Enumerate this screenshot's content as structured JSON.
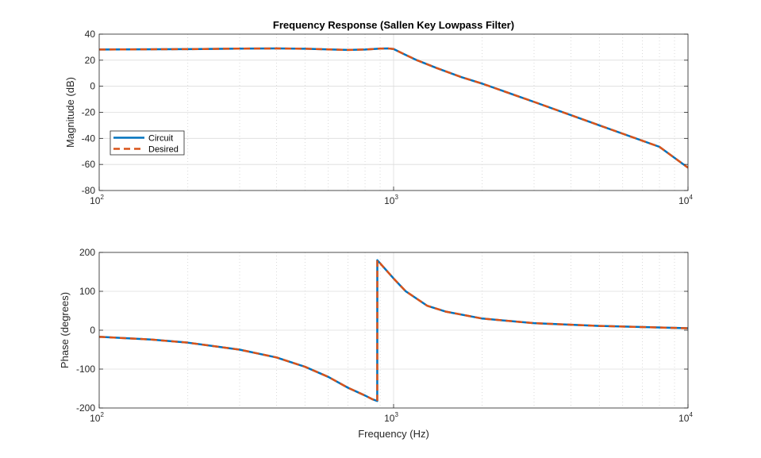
{
  "chart_data": [
    {
      "type": "line",
      "title": "Frequency Response (Sallen Key Lowpass Filter)",
      "xlabel": "",
      "ylabel": "Magnitude (dB)",
      "xscale": "log",
      "xlim": [
        100,
        10000
      ],
      "ylim": [
        -80,
        40
      ],
      "x_ticks": [
        {
          "base": "10",
          "exp": "2"
        },
        {
          "base": "10",
          "exp": "3"
        },
        {
          "base": "10",
          "exp": "4"
        }
      ],
      "y_ticks": [
        "-80",
        "-60",
        "-40",
        "-20",
        "0",
        "20",
        "40"
      ],
      "grid": true,
      "legend": {
        "location": "middle-left",
        "entries": [
          "Circuit",
          "Desired"
        ]
      },
      "series": [
        {
          "name": "Circuit",
          "color": "#0072BD",
          "style": "solid",
          "x": [
            100,
            200,
            300,
            400,
            500,
            600,
            700,
            800,
            900,
            960,
            1000,
            1100,
            1200,
            1400,
            1700,
            2000,
            3000,
            5000,
            8000,
            10000
          ],
          "y": [
            28.2,
            28.5,
            28.9,
            29.0,
            28.8,
            28.3,
            27.9,
            28.2,
            28.9,
            29.0,
            28.6,
            24.0,
            20.0,
            14.0,
            7.0,
            2.0,
            -12.0,
            -30.0,
            -46.5,
            -62.5
          ]
        },
        {
          "name": "Desired",
          "color": "#D95319",
          "style": "dashed",
          "x": [
            100,
            200,
            300,
            400,
            500,
            600,
            700,
            800,
            900,
            960,
            1000,
            1100,
            1200,
            1400,
            1700,
            2000,
            3000,
            5000,
            8000,
            10000
          ],
          "y": [
            28.2,
            28.5,
            28.9,
            29.0,
            28.8,
            28.3,
            27.9,
            28.2,
            28.9,
            29.0,
            28.6,
            24.0,
            20.0,
            14.0,
            7.0,
            2.0,
            -12.0,
            -30.0,
            -46.5,
            -62.5
          ]
        }
      ]
    },
    {
      "type": "line",
      "title": "",
      "xlabel": "Frequency (Hz)",
      "ylabel": "Phase (degrees)",
      "xscale": "log",
      "xlim": [
        100,
        10000
      ],
      "ylim": [
        -200,
        200
      ],
      "x_ticks": [
        {
          "base": "10",
          "exp": "2"
        },
        {
          "base": "10",
          "exp": "3"
        },
        {
          "base": "10",
          "exp": "4"
        }
      ],
      "y_ticks": [
        "-200",
        "-100",
        "0",
        "100",
        "200"
      ],
      "grid": true,
      "series": [
        {
          "name": "Circuit",
          "color": "#0072BD",
          "style": "solid",
          "x": [
            100,
            150,
            200,
            300,
            400,
            500,
            600,
            700,
            800,
            850,
            880,
            880.5,
            900,
            1000,
            1100,
            1300,
            1500,
            2000,
            3000,
            5000,
            10000
          ],
          "y": [
            -17,
            -24,
            -32,
            -50,
            -70,
            -94,
            -120,
            -148,
            -168,
            -178,
            -182,
            180,
            172,
            133,
            100,
            63,
            48,
            30,
            18,
            11,
            5
          ]
        },
        {
          "name": "Desired",
          "color": "#D95319",
          "style": "dashed",
          "x": [
            100,
            150,
            200,
            300,
            400,
            500,
            600,
            700,
            800,
            850,
            880,
            880.5,
            900,
            1000,
            1100,
            1300,
            1500,
            2000,
            3000,
            5000,
            10000
          ],
          "y": [
            -17,
            -24,
            -32,
            -50,
            -70,
            -94,
            -120,
            -148,
            -168,
            -178,
            -182,
            180,
            172,
            133,
            100,
            63,
            48,
            30,
            18,
            11,
            5
          ]
        }
      ]
    }
  ]
}
